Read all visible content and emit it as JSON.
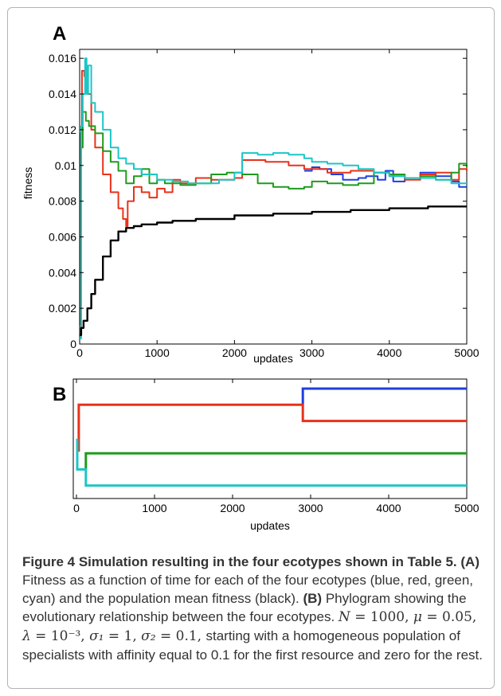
{
  "chart_data": [
    {
      "panel": "A",
      "type": "line",
      "xlabel": "updates",
      "ylabel": "fitness",
      "xlim": [
        0,
        5000
      ],
      "ylim": [
        0,
        0.0165
      ],
      "xticks": [
        0,
        1000,
        2000,
        3000,
        4000,
        5000
      ],
      "yticks": [
        0,
        0.002,
        0.004,
        0.006,
        0.008,
        0.01,
        0.012,
        0.014,
        0.016
      ],
      "ytick_labels": [
        "0",
        "0.002",
        "0.004",
        "0.006",
        "0.008",
        "0.01",
        "0.012",
        "0.014",
        "0.016"
      ],
      "series": [
        {
          "color": "#1f3fe0",
          "points": [
            [
              2900,
              0.0097
            ],
            [
              3000,
              0.0099
            ],
            [
              3100,
              0.0098
            ],
            [
              3250,
              0.0095
            ],
            [
              3400,
              0.0092
            ],
            [
              3600,
              0.0093
            ],
            [
              3700,
              0.0094
            ],
            [
              3850,
              0.0092
            ],
            [
              3950,
              0.0097
            ],
            [
              4050,
              0.0091
            ],
            [
              4200,
              0.0093
            ],
            [
              4400,
              0.0096
            ],
            [
              4600,
              0.0094
            ],
            [
              4800,
              0.0091
            ],
            [
              4900,
              0.0088
            ],
            [
              5000,
              0.0088
            ]
          ]
        },
        {
          "color": "#e8321a",
          "points": [
            [
              0,
              0.001
            ],
            [
              15,
              0.0118
            ],
            [
              30,
              0.0153
            ],
            [
              60,
              0.015
            ],
            [
              100,
              0.014
            ],
            [
              150,
              0.012
            ],
            [
              200,
              0.011
            ],
            [
              300,
              0.0095
            ],
            [
              400,
              0.0085
            ],
            [
              500,
              0.0076
            ],
            [
              560,
              0.007
            ],
            [
              600,
              0.0066
            ],
            [
              620,
              0.008
            ],
            [
              700,
              0.0088
            ],
            [
              800,
              0.0085
            ],
            [
              900,
              0.0082
            ],
            [
              1000,
              0.0087
            ],
            [
              1100,
              0.0085
            ],
            [
              1200,
              0.0092
            ],
            [
              1300,
              0.009
            ],
            [
              1500,
              0.0093
            ],
            [
              1700,
              0.0092
            ],
            [
              2000,
              0.0093
            ],
            [
              2100,
              0.0103
            ],
            [
              2400,
              0.0102
            ],
            [
              2700,
              0.01
            ],
            [
              2900,
              0.0098
            ],
            [
              3000,
              0.0098
            ],
            [
              3200,
              0.0096
            ],
            [
              3500,
              0.0097
            ],
            [
              3800,
              0.0096
            ],
            [
              4000,
              0.0094
            ],
            [
              4200,
              0.0092
            ],
            [
              4400,
              0.0095
            ],
            [
              4600,
              0.0096
            ],
            [
              4800,
              0.0092
            ],
            [
              4900,
              0.0098
            ],
            [
              5000,
              0.0097
            ]
          ]
        },
        {
          "color": "#1e9b1e",
          "points": [
            [
              0,
              0.0005
            ],
            [
              20,
              0.011
            ],
            [
              40,
              0.013
            ],
            [
              80,
              0.0125
            ],
            [
              120,
              0.0122
            ],
            [
              200,
              0.0118
            ],
            [
              300,
              0.0108
            ],
            [
              400,
              0.0102
            ],
            [
              500,
              0.0097
            ],
            [
              600,
              0.009
            ],
            [
              700,
              0.0094
            ],
            [
              800,
              0.0098
            ],
            [
              900,
              0.009
            ],
            [
              1000,
              0.0092
            ],
            [
              1100,
              0.009
            ],
            [
              1300,
              0.0089
            ],
            [
              1500,
              0.009
            ],
            [
              1700,
              0.0095
            ],
            [
              1900,
              0.0096
            ],
            [
              2100,
              0.0095
            ],
            [
              2300,
              0.009
            ],
            [
              2500,
              0.0088
            ],
            [
              2700,
              0.0087
            ],
            [
              2900,
              0.0088
            ],
            [
              3000,
              0.0091
            ],
            [
              3200,
              0.009
            ],
            [
              3400,
              0.0089
            ],
            [
              3600,
              0.009
            ],
            [
              3800,
              0.0096
            ],
            [
              4000,
              0.0095
            ],
            [
              4200,
              0.0093
            ],
            [
              4400,
              0.0094
            ],
            [
              4600,
              0.0092
            ],
            [
              4800,
              0.0096
            ],
            [
              4900,
              0.0101
            ],
            [
              5000,
              0.0099
            ]
          ]
        },
        {
          "color": "#1cc6c6",
          "points": [
            [
              0,
              0.0003
            ],
            [
              20,
              0.0122
            ],
            [
              40,
              0.014
            ],
            [
              70,
              0.016
            ],
            [
              90,
              0.014
            ],
            [
              110,
              0.0156
            ],
            [
              150,
              0.0135
            ],
            [
              200,
              0.013
            ],
            [
              300,
              0.012
            ],
            [
              400,
              0.011
            ],
            [
              500,
              0.0104
            ],
            [
              600,
              0.0101
            ],
            [
              700,
              0.0098
            ],
            [
              800,
              0.0095
            ],
            [
              1000,
              0.0092
            ],
            [
              1200,
              0.0091
            ],
            [
              1400,
              0.009
            ],
            [
              1600,
              0.009
            ],
            [
              1800,
              0.0092
            ],
            [
              2000,
              0.0096
            ],
            [
              2100,
              0.0107
            ],
            [
              2300,
              0.0106
            ],
            [
              2500,
              0.0107
            ],
            [
              2700,
              0.0106
            ],
            [
              2900,
              0.0104
            ],
            [
              3000,
              0.0102
            ],
            [
              3200,
              0.0101
            ],
            [
              3400,
              0.01
            ],
            [
              3600,
              0.0098
            ],
            [
              3800,
              0.0096
            ],
            [
              4000,
              0.0094
            ],
            [
              4200,
              0.0093
            ],
            [
              4400,
              0.0093
            ],
            [
              4600,
              0.0092
            ],
            [
              4800,
              0.009
            ],
            [
              5000,
              0.009
            ]
          ]
        },
        {
          "color": "#000000",
          "points": [
            [
              0,
              0.0005
            ],
            [
              20,
              0.0009
            ],
            [
              50,
              0.0013
            ],
            [
              100,
              0.002
            ],
            [
              150,
              0.0028
            ],
            [
              200,
              0.0036
            ],
            [
              300,
              0.0049
            ],
            [
              400,
              0.0058
            ],
            [
              500,
              0.0063
            ],
            [
              600,
              0.0065
            ],
            [
              700,
              0.0066
            ],
            [
              800,
              0.0067
            ],
            [
              1000,
              0.0068
            ],
            [
              1200,
              0.0069
            ],
            [
              1500,
              0.007
            ],
            [
              2000,
              0.0072
            ],
            [
              2500,
              0.0073
            ],
            [
              3000,
              0.0074
            ],
            [
              3500,
              0.0075
            ],
            [
              4000,
              0.0076
            ],
            [
              4500,
              0.0077
            ],
            [
              5000,
              0.0077
            ]
          ]
        }
      ]
    },
    {
      "panel": "B",
      "type": "phylogram",
      "xlabel": "updates",
      "xlim": [
        0,
        5000
      ],
      "xticks": [
        0,
        1000,
        2000,
        3000,
        4000,
        5000
      ],
      "branches": [
        {
          "color": "#1f3fe0",
          "points": [
            [
              2900,
              1
            ],
            [
              2900,
              0
            ],
            [
              5000,
              0
            ]
          ]
        },
        {
          "color": "#e8321a",
          "points": [
            [
              5000,
              2
            ],
            [
              2900,
              2
            ],
            [
              2900,
              1
            ],
            [
              30,
              1
            ],
            [
              30,
              3.9
            ]
          ]
        },
        {
          "color": "#1e9b1e",
          "points": [
            [
              5000,
              4
            ],
            [
              120,
              4
            ],
            [
              120,
              5
            ]
          ]
        },
        {
          "color": "#1cc6c6",
          "points": [
            [
              10,
              3.1
            ],
            [
              10,
              5
            ],
            [
              120,
              5
            ],
            [
              120,
              6
            ],
            [
              5000,
              6
            ]
          ]
        }
      ]
    }
  ],
  "panel_a_label": "A",
  "panel_b_label": "B",
  "caption": {
    "title": "Figure 4 Simulation resulting in the four ecotypes shown in Table 5.",
    "a_marker": "(A)",
    "a_text": " Fitness as a function of time for each of the four ecotypes (blue, red, green, cyan) and the population mean fitness (black). ",
    "b_marker": "(B)",
    "b_text": " Phylogram showing the evolutionary relationship between the four ecotypes. ",
    "params": [
      {
        "sym": "N",
        "val": " = 1000, "
      },
      {
        "sym": "μ",
        "val": " = 0.05, "
      },
      {
        "sym": "λ",
        "val": " = 10⁻³, "
      },
      {
        "sym": "σ₁",
        "val": " = 1, "
      },
      {
        "sym": "σ₂",
        "val": " = 0.1, "
      }
    ],
    "tail": "starting with a homogeneous population of specialists with affinity equal to 0.1 for the first resource and zero for the rest."
  }
}
